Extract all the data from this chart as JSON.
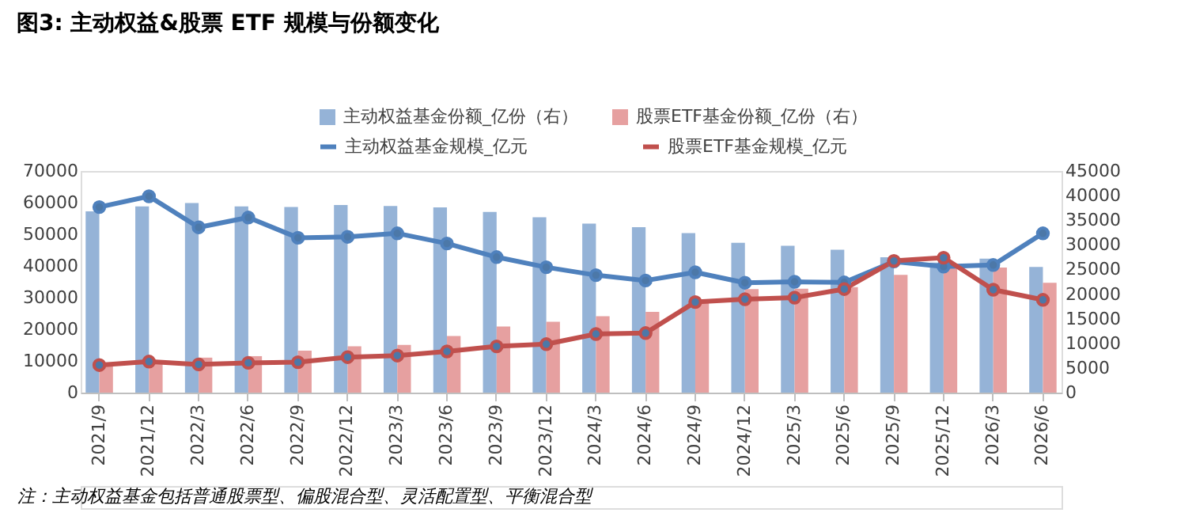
{
  "chart_data": {
    "type": "bar",
    "title": "图3: 主动权益&股票 ETF 规模与份额变化",
    "categories": [
      "2021/9",
      "2021/12",
      "2022/3",
      "2022/6",
      "2022/9",
      "2022/12",
      "2023/3",
      "2023/6",
      "2023/9",
      "2023/12",
      "2024/3",
      "2024/6",
      "2024/9",
      "2024/12",
      "2025/3",
      "2025/6",
      "2025/9",
      "2025/12",
      "2026/3",
      "2026/6"
    ],
    "series": [
      {
        "name": "主动权益基金份额_亿份（右）",
        "axis": "y2",
        "color": "#95b3d7",
        "values": [
          36800,
          37800,
          38500,
          37800,
          37700,
          38100,
          37900,
          37600,
          36700,
          35600,
          34300,
          33600,
          32400,
          30400,
          29800,
          29000,
          27500,
          26400,
          27200,
          25500
        ]
      },
      {
        "name": "股票ETF基金份额_亿份（右）",
        "axis": "y2",
        "color": "#e6a0a0",
        "values": [
          5700,
          6300,
          7100,
          7400,
          8500,
          9400,
          9700,
          11500,
          13400,
          14400,
          15500,
          16400,
          18500,
          21000,
          21100,
          21400,
          23900,
          25400,
          25400,
          22300
        ]
      },
      {
        "name": "主动权益基金规模_亿元",
        "type": "line",
        "color": "#4f81bd",
        "values": [
          58600,
          62000,
          52200,
          55300,
          48900,
          49200,
          50300,
          47100,
          42800,
          39600,
          37100,
          35400,
          38000,
          34700,
          35000,
          34800,
          41400,
          39800,
          40300,
          50300
        ]
      },
      {
        "name": "股票ETF基金规模_亿元",
        "type": "line",
        "color": "#c0504d",
        "values": [
          8700,
          9800,
          8900,
          9400,
          9600,
          11200,
          11700,
          13000,
          14600,
          15300,
          18500,
          18800,
          28600,
          29500,
          30000,
          32700,
          41600,
          42600,
          32500,
          29300
        ]
      }
    ],
    "ylim": [
      0,
      70000
    ],
    "yticks": [
      0,
      10000,
      20000,
      30000,
      40000,
      50000,
      60000,
      70000
    ],
    "y2lim": [
      0,
      45000
    ],
    "y2ticks": [
      0,
      5000,
      10000,
      15000,
      20000,
      25000,
      30000,
      35000,
      40000,
      45000
    ],
    "legend": "top",
    "marker": "circle",
    "line_style": "solid",
    "annotations": [
      "注：主动权益基金包括普通股票型、偏股混合型、灵活配置型、平衡混合型"
    ]
  }
}
